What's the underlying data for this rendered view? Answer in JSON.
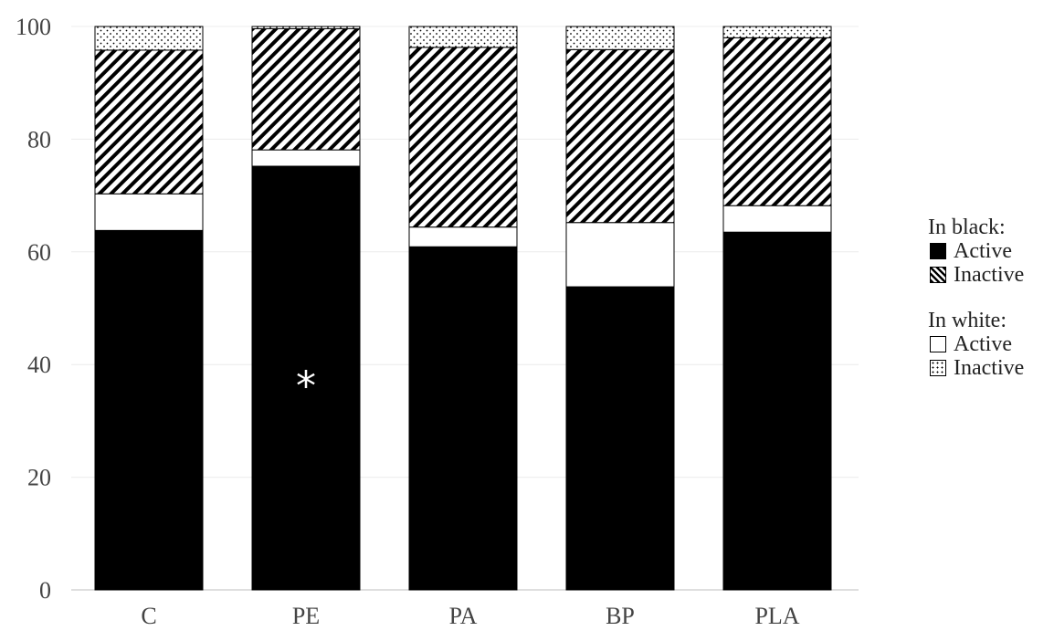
{
  "chart_data": {
    "type": "bar",
    "stacked": true,
    "categories": [
      "C",
      "PE",
      "PA",
      "BP",
      "PLA"
    ],
    "ylim": [
      0,
      100
    ],
    "yticks": [
      0,
      20,
      40,
      60,
      80,
      100
    ],
    "series": [
      {
        "name": "Active",
        "group": "In black:",
        "pattern": "solid",
        "values": [
          63.8,
          75.2,
          60.9,
          53.8,
          63.5
        ]
      },
      {
        "name": "Active",
        "group": "In white:",
        "pattern": "white",
        "values": [
          6.5,
          2.9,
          3.5,
          11.4,
          4.7
        ]
      },
      {
        "name": "Inactive",
        "group": "In black:",
        "pattern": "hatch",
        "values": [
          25.5,
          21.5,
          31.9,
          30.7,
          29.8
        ]
      },
      {
        "name": "Inactive",
        "group": "In white:",
        "pattern": "dots",
        "values": [
          4.2,
          0.4,
          3.7,
          4.1,
          2.0
        ]
      }
    ],
    "annotations": [
      {
        "category": "PE",
        "text": "*",
        "y": 37,
        "color": "#ffffff"
      }
    ],
    "grid": true
  },
  "legend": {
    "black_title": "In black:",
    "black_active": "Active",
    "black_inactive": "Inactive",
    "white_title": "In white:",
    "white_active": "Active",
    "white_inactive": "Inactive"
  }
}
